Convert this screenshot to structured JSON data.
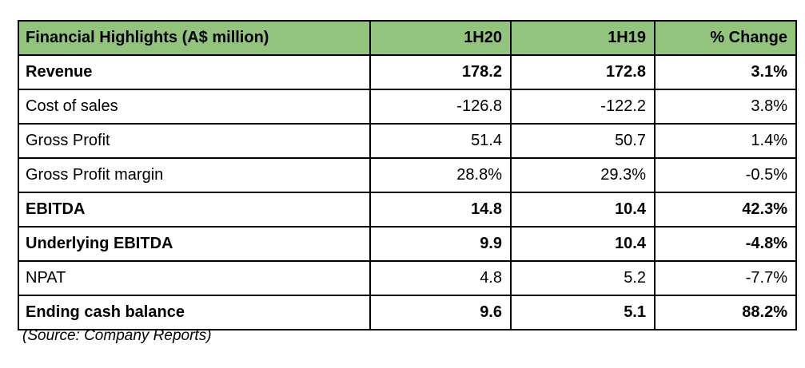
{
  "chart_data": {
    "type": "table",
    "title": "Financial Highlights (A$ million)",
    "columns": [
      "Financial Highlights (A$ million)",
      "1H20",
      "1H19",
      "% Change"
    ],
    "rows": [
      [
        "Revenue",
        "178.2",
        "172.8",
        "3.1%"
      ],
      [
        "Cost of sales",
        "-126.8",
        "-122.2",
        "3.8%"
      ],
      [
        "Gross Profit",
        "51.4",
        "50.7",
        "1.4%"
      ],
      [
        "Gross Profit margin",
        "28.8%",
        "29.3%",
        "-0.5%"
      ],
      [
        "EBITDA",
        "14.8",
        "10.4",
        "42.3%"
      ],
      [
        "Underlying EBITDA",
        "9.9",
        "10.4",
        "-4.8%"
      ],
      [
        "NPAT",
        "4.8",
        "5.2",
        "-7.7%"
      ],
      [
        "Ending cash balance",
        "9.6",
        "5.1",
        "88.2%"
      ]
    ],
    "bold_rows": [
      "Revenue",
      "EBITDA",
      "Underlying EBITDA",
      "Ending cash balance"
    ],
    "source_note": "(Source: Company Reports)"
  },
  "table": {
    "header": {
      "label": "Financial Highlights (A$ million)",
      "col1": "1H20",
      "col2": "1H19",
      "col3": "% Change"
    },
    "rows": [
      {
        "label": "Revenue",
        "h20": "178.2",
        "h19": "172.8",
        "change": "3.1%",
        "bold": true
      },
      {
        "label": "Cost of sales",
        "h20": "-126.8",
        "h19": "-122.2",
        "change": "3.8%",
        "bold": false
      },
      {
        "label": "Gross Profit",
        "h20": "51.4",
        "h19": "50.7",
        "change": "1.4%",
        "bold": false
      },
      {
        "label": "Gross Profit margin",
        "h20": "28.8%",
        "h19": "29.3%",
        "change": "-0.5%",
        "bold": false
      },
      {
        "label": "EBITDA",
        "h20": "14.8",
        "h19": "10.4",
        "change": "42.3%",
        "bold": true
      },
      {
        "label": "Underlying EBITDA",
        "h20": "9.9",
        "h19": "10.4",
        "change": "-4.8%",
        "bold": true
      },
      {
        "label": "NPAT",
        "h20": "4.8",
        "h19": "5.2",
        "change": "-7.7%",
        "bold": false
      },
      {
        "label": "Ending cash balance",
        "h20": "9.6",
        "h19": "5.1",
        "change": "88.2%",
        "bold": true
      }
    ]
  },
  "footer": {
    "source": "(Source: Company Reports)"
  },
  "colors": {
    "header_bg": "#93c47d",
    "border": "#000000",
    "text": "#000000",
    "background": "#ffffff"
  }
}
